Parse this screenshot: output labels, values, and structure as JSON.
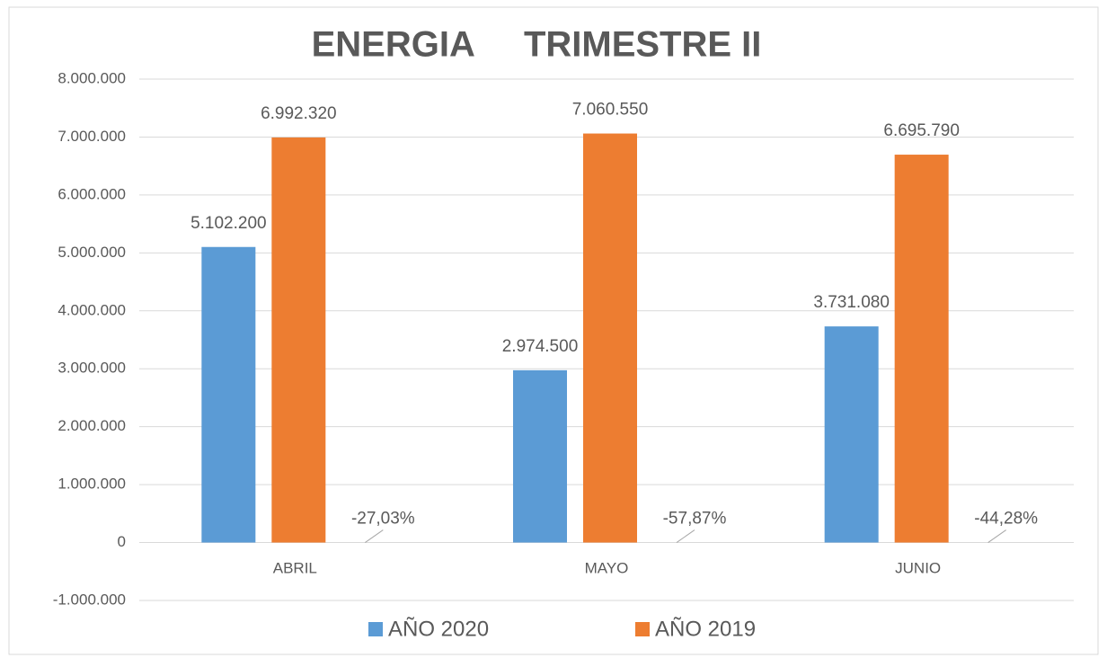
{
  "chart_data": {
    "type": "bar",
    "title": "ENERGIA     TRIMESTRE II",
    "categories": [
      "ABRIL",
      "MAYO",
      "JUNIO"
    ],
    "series": [
      {
        "name": "AÑO 2020",
        "color": "#5b9bd5",
        "values": [
          5102200,
          2974500,
          3731080
        ],
        "value_labels": [
          "5.102.200",
          "2.974.500",
          "3.731.080"
        ]
      },
      {
        "name": "AÑO 2019",
        "color": "#ed7d31",
        "values": [
          6992320,
          7060550,
          6695790
        ],
        "value_labels": [
          "6.992.320",
          "7.060.550",
          "6.695.790"
        ]
      }
    ],
    "annotations": [
      "-27,03%",
      "-57,87%",
      "-44,28%"
    ],
    "ylim": [
      -1000000,
      8000000
    ],
    "yticks": [
      {
        "value": -1000000,
        "label": "-1.000.000"
      },
      0,
      {
        "value": 1000000,
        "label": "1.000.000"
      },
      {
        "value": 2000000,
        "label": "2.000.000"
      },
      {
        "value": 3000000,
        "label": "3.000.000"
      },
      {
        "value": 4000000,
        "label": "4.000.000"
      },
      {
        "value": 5000000,
        "label": "5.000.000"
      },
      {
        "value": 6000000,
        "label": "6.000.000"
      },
      {
        "value": 7000000,
        "label": "7.000.000"
      },
      {
        "value": 8000000,
        "label": "8.000.000"
      }
    ],
    "grid": true,
    "legend": "bottom"
  }
}
